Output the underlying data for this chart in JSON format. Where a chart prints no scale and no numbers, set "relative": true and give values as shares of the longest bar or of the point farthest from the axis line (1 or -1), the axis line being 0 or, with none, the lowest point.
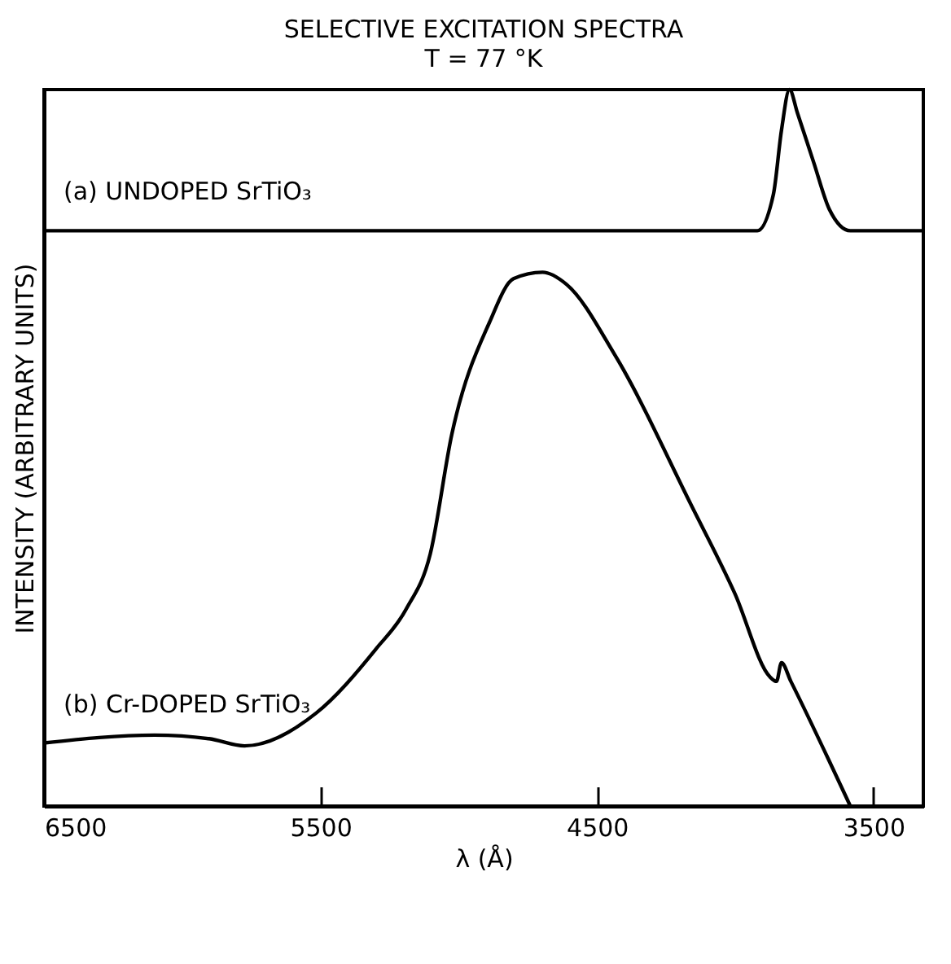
{
  "chart_data": {
    "type": "line",
    "title": "SELECTIVE EXCITATION SPECTRA",
    "subtitle": "T = 77 °K",
    "xlabel": "λ (Å)",
    "ylabel": "INTENSITY (ARBITRARY UNITS)",
    "relative": true,
    "xlim": [
      6500,
      3320
    ],
    "xticks": [
      6500,
      5500,
      4500,
      3500
    ],
    "grid": false,
    "legend": false,
    "series": [
      {
        "name": "(a) UNDOPED SrTiO₃",
        "color": "#000000",
        "x": [
          6500,
          3920,
          3862,
          3833,
          3804,
          3775,
          3717,
          3660,
          3584,
          3320
        ],
        "values": [
          0.803,
          0.803,
          0.854,
          0.943,
          1.0,
          0.967,
          0.899,
          0.833,
          0.803,
          0.803
        ]
      },
      {
        "name": "(b) Cr-DOPED SrTiO₃",
        "color": "#000000",
        "x": [
          6500,
          6100,
          5903,
          5775,
          5515,
          5300,
          5190,
          5103,
          5025,
          4889,
          4802,
          4697,
          4610,
          4436,
          4158,
          4002,
          3874,
          3851,
          3833,
          3799,
          3584
        ],
        "values": [
          0.088,
          0.099,
          0.094,
          0.084,
          0.13,
          0.219,
          0.275,
          0.352,
          0.519,
          0.675,
          0.736,
          0.745,
          0.728,
          0.63,
          0.419,
          0.297,
          0.18,
          0.174,
          0.2,
          0.174,
          0.0
        ]
      }
    ]
  }
}
